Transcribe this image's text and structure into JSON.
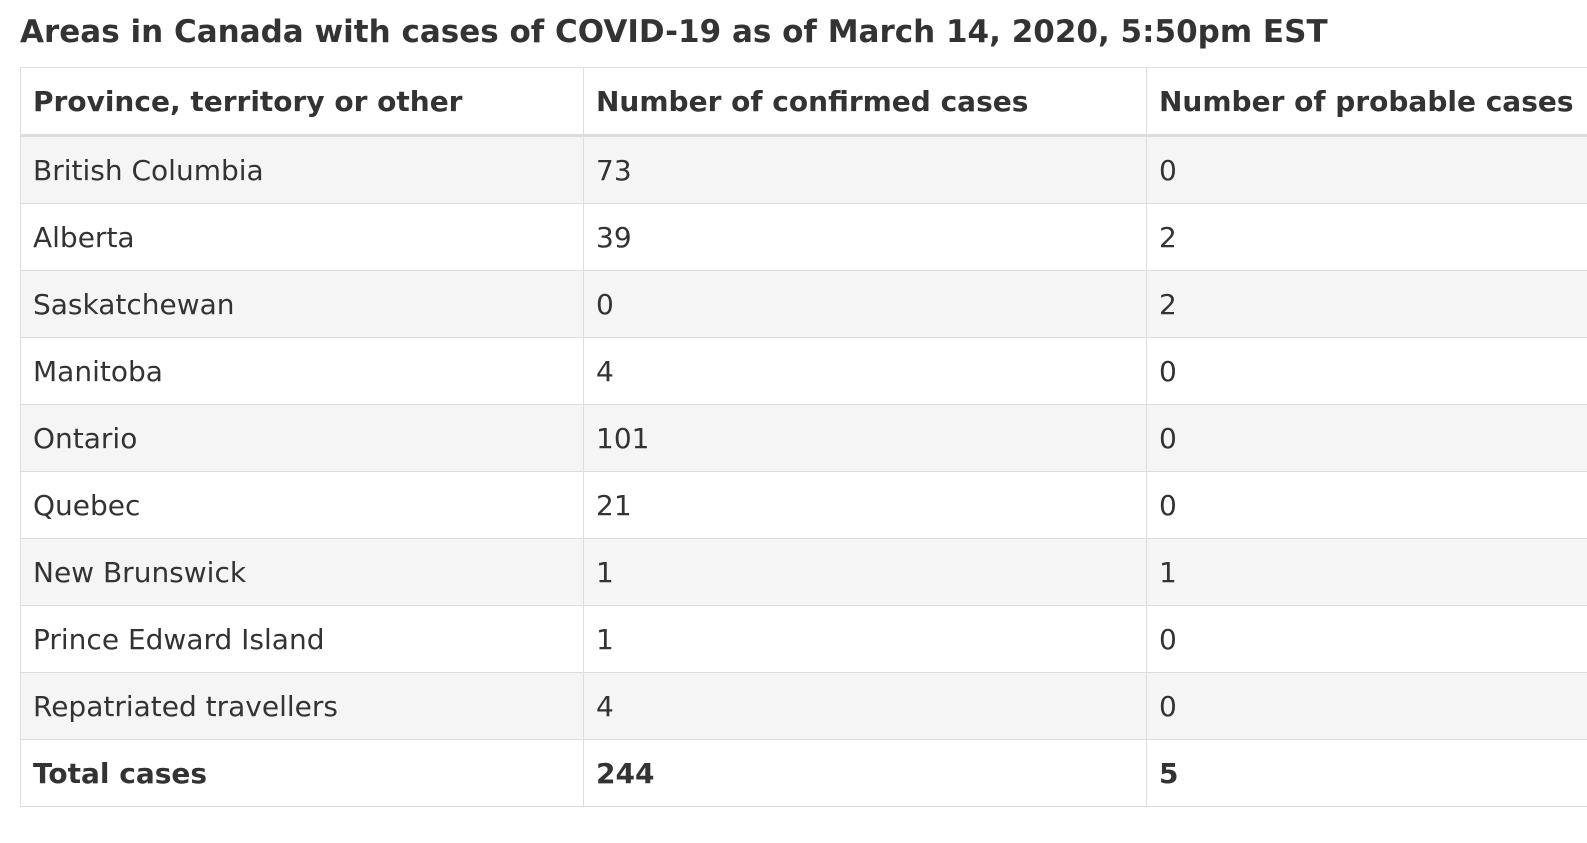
{
  "title": "Areas in Canada with cases of COVID-19 as of March 14, 2020, 5:50pm EST",
  "table": {
    "headers": [
      "Province, territory or other",
      "Number of confirmed cases",
      "Number of probable cases"
    ],
    "rows": [
      [
        "British Columbia",
        "73",
        "0"
      ],
      [
        "Alberta",
        "39",
        "2"
      ],
      [
        "Saskatchewan",
        "0",
        "2"
      ],
      [
        "Manitoba",
        "4",
        "0"
      ],
      [
        "Ontario",
        "101",
        "0"
      ],
      [
        "Quebec",
        "21",
        "0"
      ],
      [
        "New Brunswick",
        "1",
        "1"
      ],
      [
        "Prince Edward Island",
        "1",
        "0"
      ],
      [
        "Repatriated travellers",
        "4",
        "0"
      ]
    ],
    "total": [
      "Total cases",
      "244",
      "5"
    ]
  }
}
